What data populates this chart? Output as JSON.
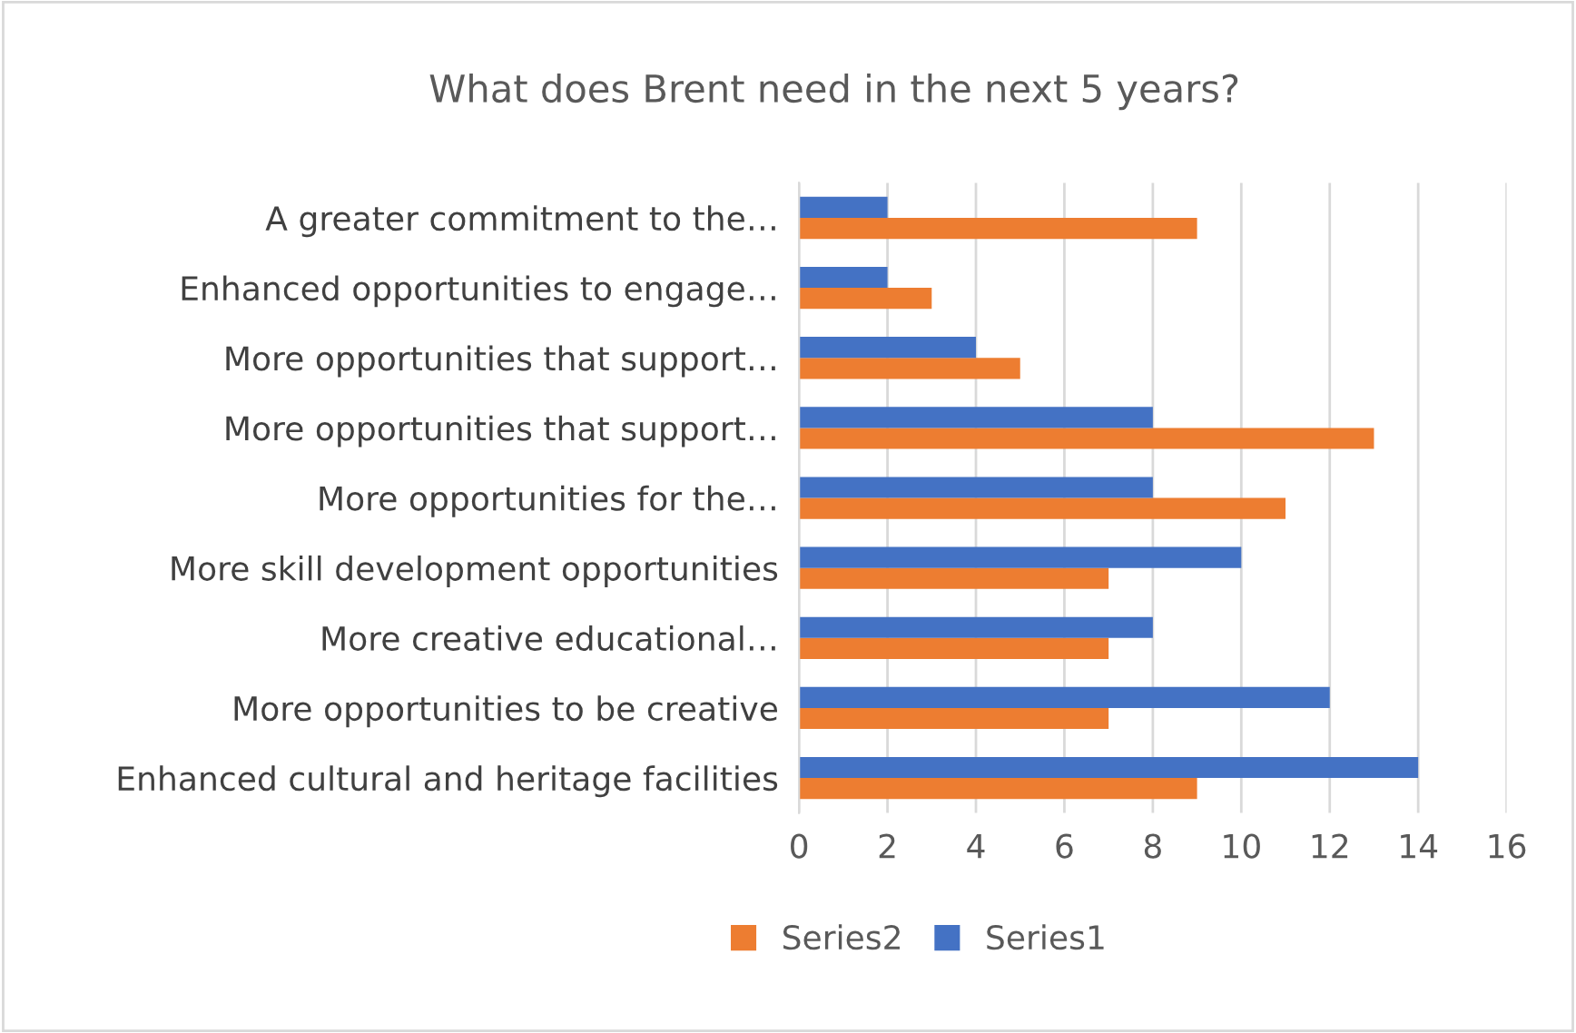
{
  "chart_data": {
    "type": "bar",
    "orientation": "horizontal",
    "title": "What does Brent need in the next 5 years?",
    "categories": [
      "A greater commitment to the…",
      "Enhanced opportunities to engage…",
      "More opportunities that support…",
      "More opportunities that support…",
      "More opportunities for the…",
      "More skill development opportunities",
      "More creative educational…",
      "More opportunities to be creative",
      "Enhanced cultural and heritage facilities"
    ],
    "series": [
      {
        "name": "Series2",
        "color": "#ed7d31",
        "values": [
          9,
          3,
          5,
          13,
          11,
          7,
          7,
          7,
          9
        ]
      },
      {
        "name": "Series1",
        "color": "#4472c4",
        "values": [
          2,
          2,
          4,
          8,
          8,
          10,
          8,
          12,
          14
        ]
      }
    ],
    "xlim": [
      0,
      16
    ],
    "xticks": [
      0,
      2,
      4,
      6,
      8,
      10,
      12,
      14,
      16
    ],
    "grid": "x",
    "legend": "bottom"
  }
}
